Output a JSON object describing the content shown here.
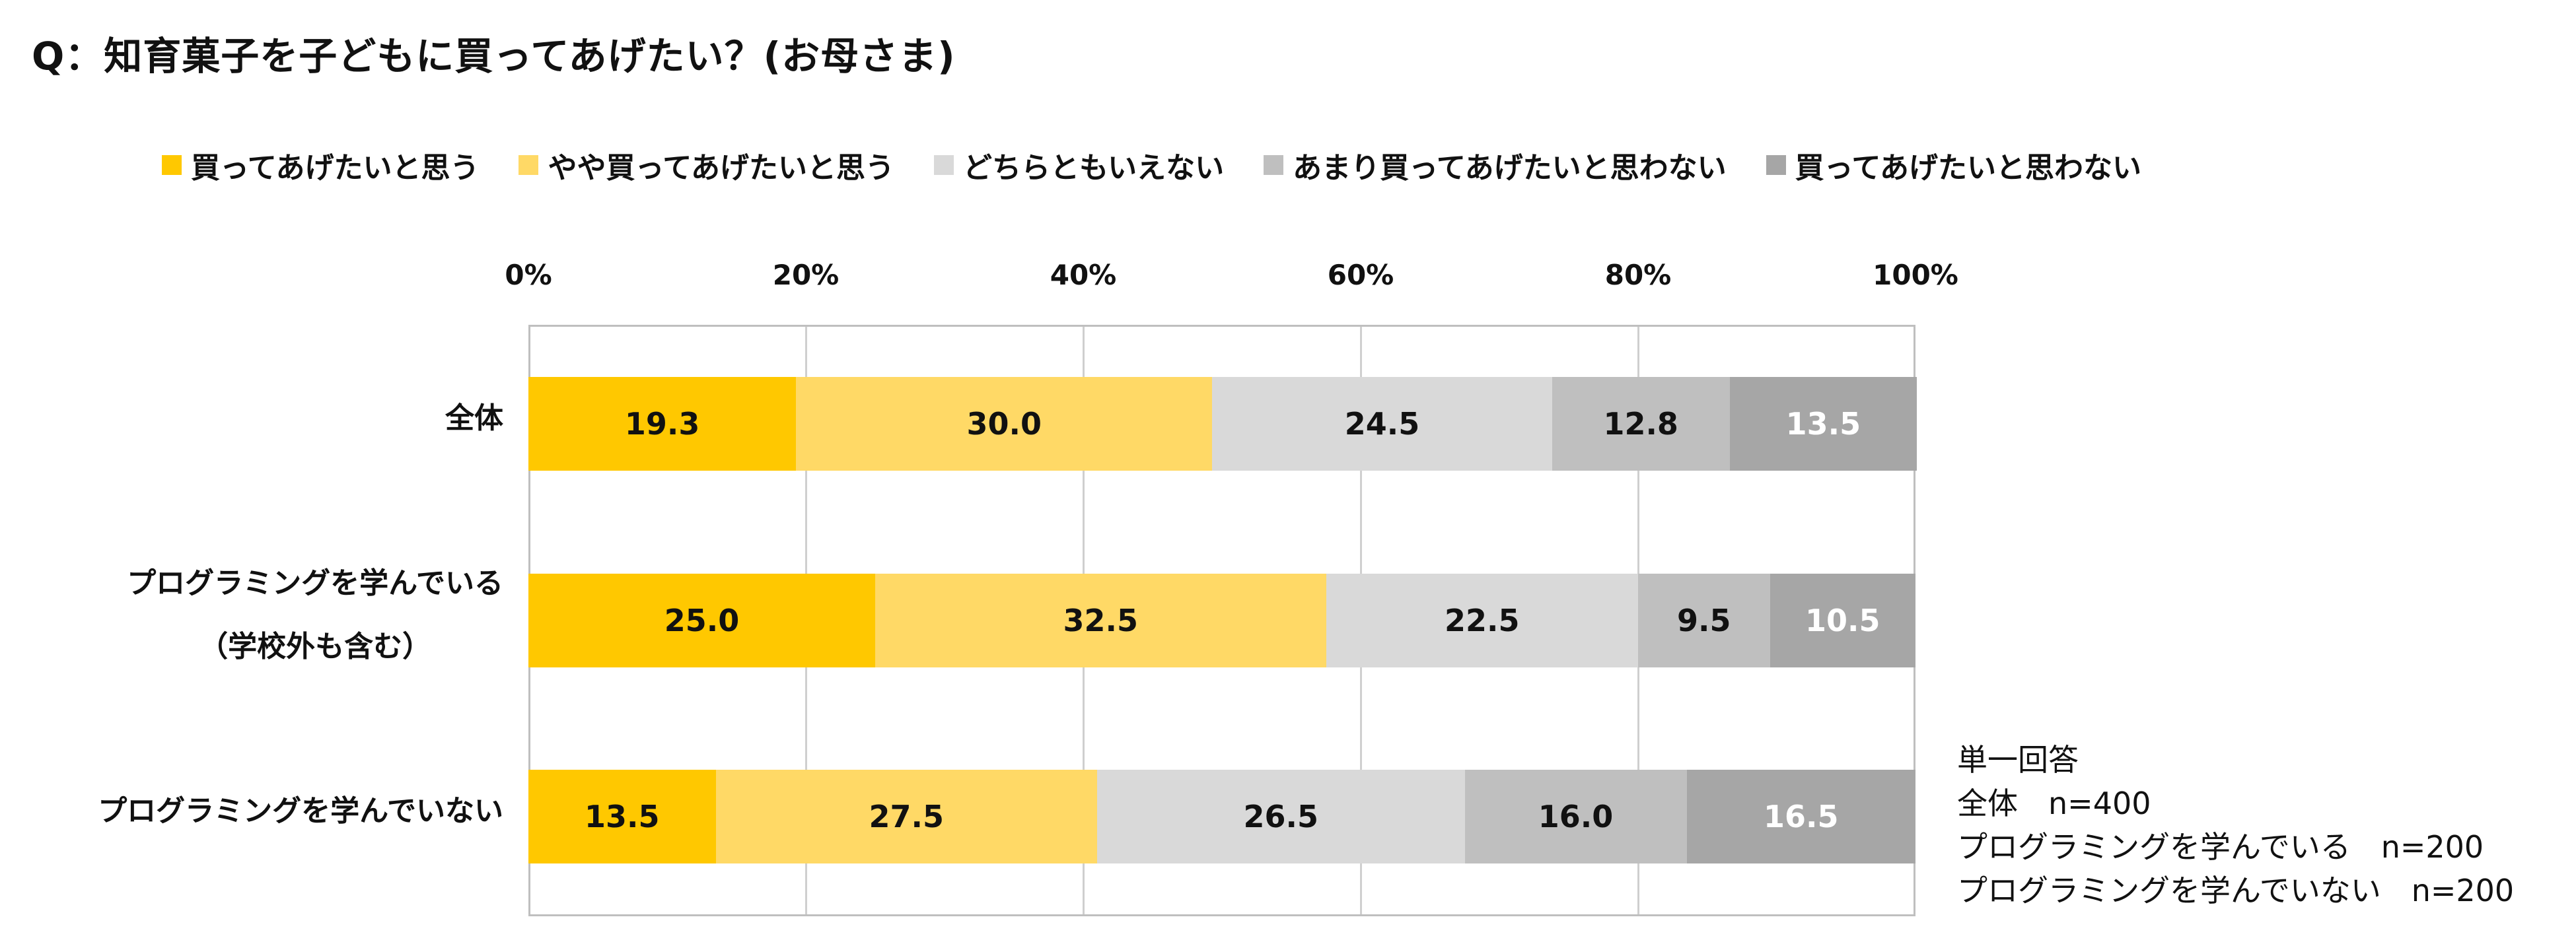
{
  "title": "Q：知育菓子を子どもに買ってあげたい？(お母さま)",
  "note": {
    "lines": [
      "単一回答",
      "全体　n=400",
      "プログラミングを学んでいる　n=200",
      "プログラミングを学んでいない　n=200"
    ]
  },
  "chart_data": {
    "type": "bar",
    "orientation": "horizontal",
    "stacked": "percent",
    "xlim": [
      0,
      100
    ],
    "x_ticks": [
      "0%",
      "20%",
      "40%",
      "60%",
      "80%",
      "100%"
    ],
    "grid": true,
    "legend_position": "top",
    "categories": [
      {
        "lines": [
          "全体"
        ]
      },
      {
        "lines": [
          "プログラミングを学んでいる",
          "（学校外も含む）"
        ]
      },
      {
        "lines": [
          "プログラミングを学んでいない"
        ]
      }
    ],
    "series": [
      {
        "name": "買ってあげたいと思う",
        "color": "#FFC800",
        "label_color": "#111111",
        "values": [
          19.3,
          25.0,
          13.5
        ]
      },
      {
        "name": "やや買ってあげたいと思う",
        "color": "#FFD966",
        "label_color": "#111111",
        "values": [
          30.0,
          32.5,
          27.5
        ]
      },
      {
        "name": "どちらともいえない",
        "color": "#D9D9D9",
        "label_color": "#111111",
        "values": [
          24.5,
          22.5,
          26.5
        ]
      },
      {
        "name": "あまり買ってあげたいと思わない",
        "color": "#BFBFBF",
        "label_color": "#111111",
        "values": [
          12.8,
          9.5,
          16.0
        ]
      },
      {
        "name": "買ってあげたいと思わない",
        "color": "#A6A6A6",
        "label_color": "#FFFFFF",
        "values": [
          13.5,
          10.5,
          16.5
        ]
      }
    ]
  }
}
